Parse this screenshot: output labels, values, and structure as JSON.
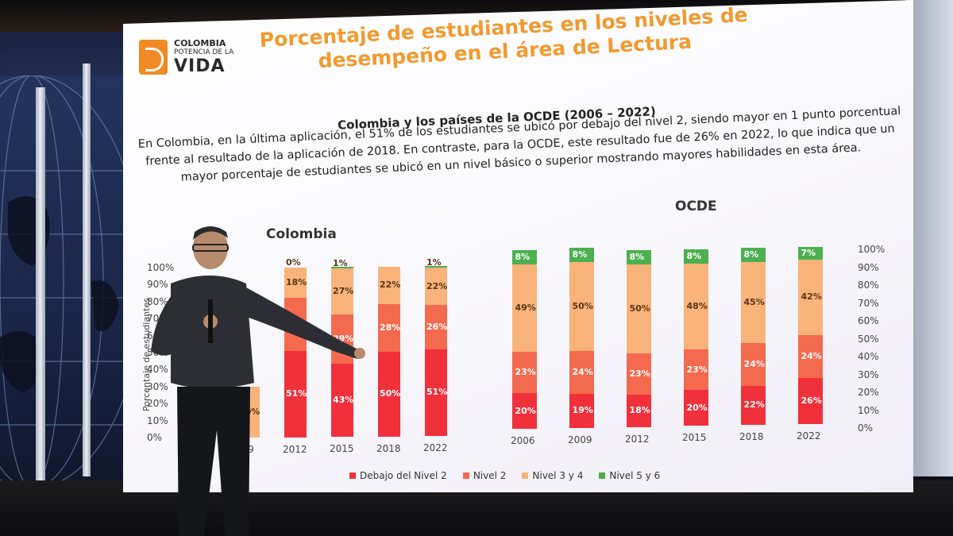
{
  "logo": {
    "line1": "COLOMBIA",
    "line2": "POTENCIA DE LA",
    "line3": "VIDA"
  },
  "title": "Porcentaje de estudiantes en los niveles de desempeño en el área de Lectura",
  "subtitle": "Colombia y los países de la OCDE (2006 – 2022)",
  "paragraph": "En Colombia, en la última aplicación, el 51% de los estudiantes se ubicó por debajo del nivel 2, siendo mayor en 1 punto porcentual frente al resultado de la aplicación de 2018. En contraste, para la OCDE, este resultado fue de 26% en 2022, lo que indica que un mayor porcentaje de estudiantes se ubicó en un nivel básico o superior mostrando mayores habilidades en esta área.",
  "colors": {
    "below_2": "#f0303a",
    "level_2": "#f46a4e",
    "level_34": "#f8b37a",
    "level_56": "#4caf50"
  },
  "legend": [
    "Debajo del Nivel 2",
    "Nivel 2",
    "Nivel 3 y 4",
    "Nivel 5 y 6"
  ],
  "chart_data": [
    {
      "type": "bar",
      "title": "Colombia",
      "ylabel": "Porcentaje de estudiantes",
      "ylim": [
        0,
        100
      ],
      "yticks": [
        "0%",
        "10%",
        "20%",
        "30%",
        "40%",
        "50%",
        "60%",
        "70%",
        "80%",
        "90%",
        "100%"
      ],
      "categories": [
        "2006",
        "2009",
        "2012",
        "2015",
        "2018",
        "2022"
      ],
      "category_labels": [
        "",
        "009",
        "2012",
        "2015",
        "2018",
        "2022"
      ],
      "series": [
        {
          "name": "Debajo del Nivel 2",
          "values": [
            null,
            null,
            51,
            43,
            50,
            51
          ]
        },
        {
          "name": "Nivel 2",
          "values": [
            null,
            null,
            31,
            29,
            28,
            26
          ]
        },
        {
          "name": "Nivel 3 y 4",
          "values": [
            null,
            30,
            18,
            27,
            22,
            22
          ]
        },
        {
          "name": "Nivel 5 y 6",
          "values": [
            null,
            null,
            0,
            1,
            null,
            1
          ]
        }
      ],
      "visible_labels": {
        "2012": [
          "51%",
          "",
          "18%",
          "0%"
        ],
        "2015": [
          "43%",
          "29%",
          "27%",
          "1%"
        ],
        "2018": [
          "50%",
          "28%",
          "22%",
          ""
        ],
        "2022": [
          "51%",
          "26%",
          "22%",
          "1%"
        ],
        "2009": [
          "",
          "",
          "30%",
          ""
        ]
      }
    },
    {
      "type": "bar",
      "title": "OCDE",
      "ylim": [
        0,
        100
      ],
      "yticks": [
        "0%",
        "10%",
        "20%",
        "30%",
        "40%",
        "50%",
        "60%",
        "70%",
        "80%",
        "90%",
        "100%"
      ],
      "categories": [
        "2006",
        "2009",
        "2012",
        "2015",
        "2018",
        "2022"
      ],
      "series": [
        {
          "name": "Debajo del Nivel 2",
          "values": [
            20,
            19,
            18,
            20,
            22,
            26
          ]
        },
        {
          "name": "Nivel 2",
          "values": [
            23,
            24,
            23,
            23,
            24,
            24
          ]
        },
        {
          "name": "Nivel 3 y 4",
          "values": [
            49,
            50,
            50,
            48,
            45,
            42
          ]
        },
        {
          "name": "Nivel 5 y 6",
          "values": [
            8,
            8,
            8,
            8,
            8,
            7
          ]
        }
      ]
    }
  ]
}
